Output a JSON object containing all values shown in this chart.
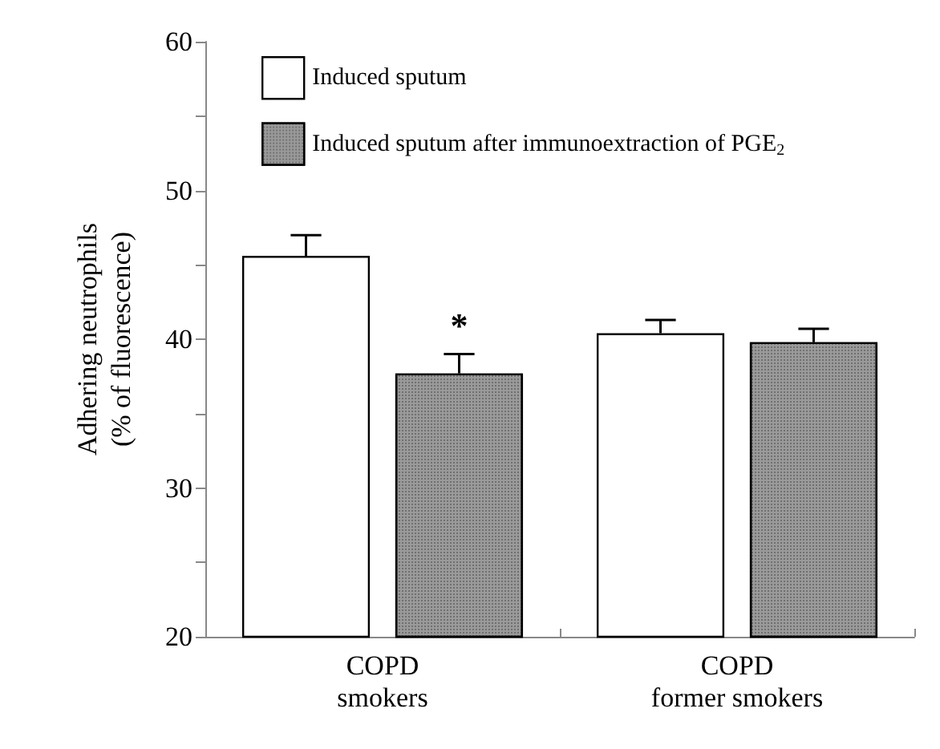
{
  "chart_data": {
    "type": "bar",
    "ylabel": "Adhering neutrophils\n(% of fluorescence)",
    "categories": [
      "COPD\nsmokers",
      "COPD\nformer smokers"
    ],
    "series": [
      {
        "name": "Induced sputum",
        "color": "#ffffff",
        "values": [
          45.6,
          40.4
        ],
        "errors": [
          [
            45.6,
            47.0
          ],
          [
            40.4,
            41.3
          ]
        ]
      },
      {
        "name": "Induced sputum after immunoextraction of PGE$_{2}$",
        "color": "#9a9a9a",
        "values": [
          37.7,
          39.8
        ],
        "errors": [
          [
            37.7,
            39.0
          ],
          [
            39.8,
            40.7
          ]
        ]
      }
    ],
    "ylim": [
      20,
      60
    ],
    "yticks": [
      20,
      {
        "value": 25,
        "label": null
      },
      30,
      {
        "value": 35,
        "label": null
      },
      40,
      {
        "value": 45,
        "label": null
      },
      50,
      {
        "value": 55,
        "label": null
      },
      60
    ],
    "annotations": [
      "*"
    ],
    "grid": false,
    "legend": "top left"
  }
}
